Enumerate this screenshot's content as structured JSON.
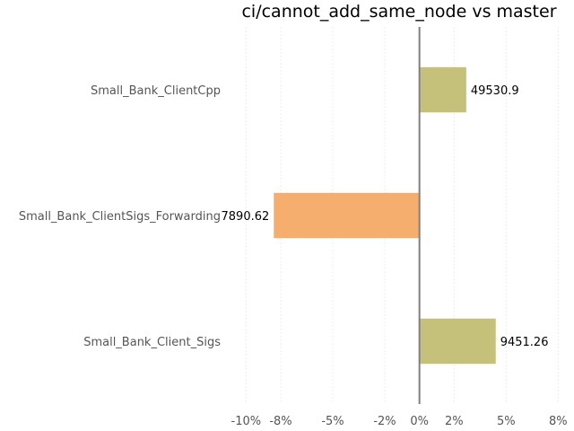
{
  "chart_data": {
    "type": "bar",
    "orientation": "horizontal",
    "title": "ci/cannot_add_same_node vs master",
    "xlabel": "",
    "ylabel": "",
    "categories": [
      "Small_Bank_ClientCpp",
      "Small_Bank_ClientSigs_Forwarding",
      "Small_Bank_Client_Sigs"
    ],
    "values": [
      2.7,
      -8.4,
      4.4
    ],
    "value_labels": [
      "49530.9",
      "7890.62",
      "9451.26"
    ],
    "bar_colors": [
      "#c5c17a",
      "#f5ae6e",
      "#c5c17a"
    ],
    "xlim": [
      -11,
      8.5
    ],
    "xticks": [
      -10,
      -8,
      -5,
      -2,
      0,
      2,
      5,
      8
    ],
    "xtick_labels": [
      "-10%",
      "-8%",
      "-5%",
      "-2%",
      "0%",
      "2%",
      "5%",
      "8%"
    ],
    "grid": true,
    "legend": "none"
  }
}
